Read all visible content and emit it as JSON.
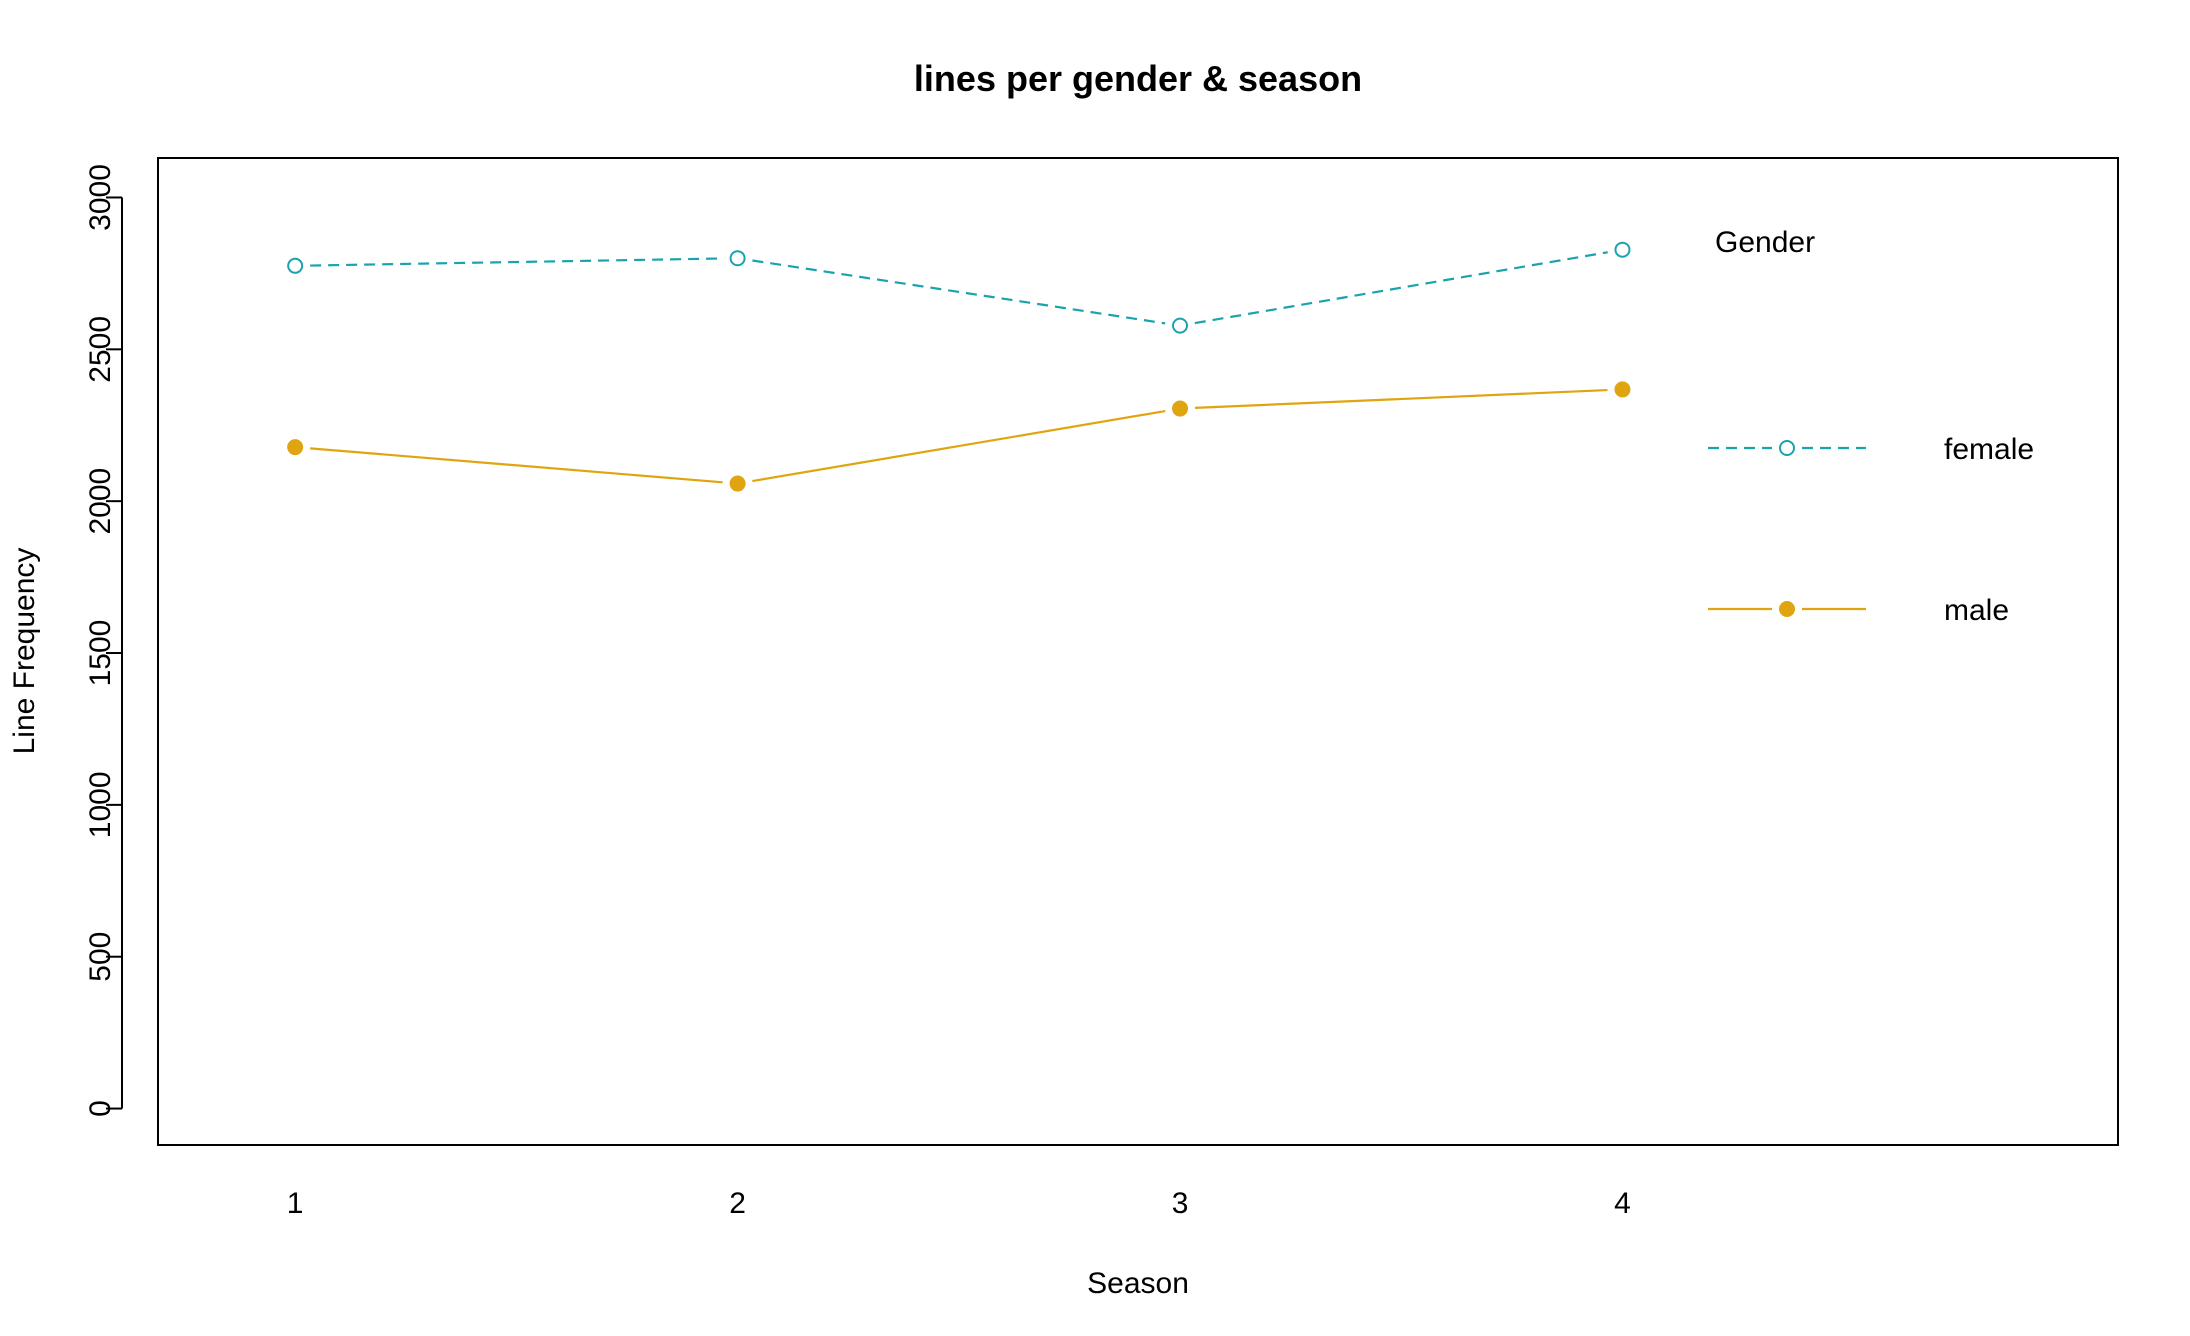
{
  "chart_data": {
    "type": "line",
    "title": "lines per gender & season",
    "xlabel": "Season",
    "ylabel": "Line Frequency",
    "categories": [
      "1",
      "2",
      "3",
      "4"
    ],
    "x": [
      1,
      2,
      3,
      4
    ],
    "xlim": [
      0.69,
      5.12
    ],
    "ylim": [
      -120,
      3130
    ],
    "yticks": [
      0,
      500,
      1000,
      1500,
      2000,
      2500,
      3000
    ],
    "ytick_labels": [
      "0",
      "500",
      "1000",
      "1500",
      "2000",
      "2500",
      "3000"
    ],
    "grid": false,
    "legend": {
      "title": "Gender",
      "placement": "top-right"
    },
    "series": [
      {
        "name": "female",
        "values": [
          2775,
          2800,
          2578,
          2828
        ],
        "color": "#1AA3AE",
        "line_style": "dashed",
        "marker": "open-circle"
      },
      {
        "name": "male",
        "values": [
          2178,
          2058,
          2305,
          2368
        ],
        "color": "#E0A410",
        "line_style": "solid",
        "marker": "filled-circle"
      }
    ]
  }
}
